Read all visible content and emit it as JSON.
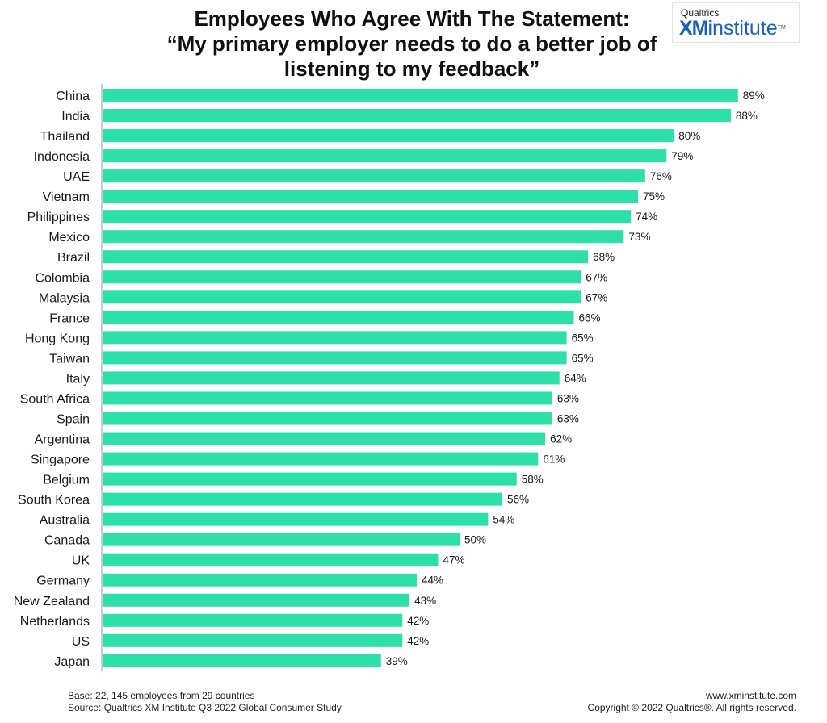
{
  "title_lines": [
    "Employees Who Agree With The Statement:",
    "“My primary employer needs to do a better job of",
    "listening to my feedback”"
  ],
  "logo": {
    "brand": "Qualtrics",
    "xm": "XM",
    "institute": "institute",
    "tm": "TM"
  },
  "footer": {
    "base": "Base: 22, 145 employees from 29 countries",
    "source": "Source: Qualtrics XM Institute Q3 2022 Global Consumer Study",
    "site": "www.xminstitute.com",
    "copyright": "Copyright © 2022 Qualtrics®. All rights reserved."
  },
  "colors": {
    "bar": "#2de0a9",
    "axis": "#9a9a9a"
  },
  "chart_data": {
    "type": "bar",
    "orientation": "horizontal",
    "categories": [
      "China",
      "India",
      "Thailand",
      "Indonesia",
      "UAE",
      "Vietnam",
      "Philippines",
      "Mexico",
      "Brazil",
      "Colombia",
      "Malaysia",
      "France",
      "Hong Kong",
      "Taiwan",
      "Italy",
      "South Africa",
      "Spain",
      "Argentina",
      "Singapore",
      "Belgium",
      "South Korea",
      "Australia",
      "Canada",
      "UK",
      "Germany",
      "New Zealand",
      "Netherlands",
      "US",
      "Japan"
    ],
    "values": [
      89,
      88,
      80,
      79,
      76,
      75,
      74,
      73,
      68,
      67,
      67,
      66,
      65,
      65,
      64,
      63,
      63,
      62,
      61,
      58,
      56,
      54,
      50,
      47,
      44,
      43,
      42,
      42,
      39
    ],
    "labels": [
      "89%",
      "88%",
      "80%",
      "79%",
      "76%",
      "75%",
      "74%",
      "73%",
      "68%",
      "67%",
      "67%",
      "66%",
      "65%",
      "65%",
      "64%",
      "63%",
      "63%",
      "62%",
      "61%",
      "58%",
      "56%",
      "54%",
      "50%",
      "47%",
      "44%",
      "43%",
      "42%",
      "42%",
      "39%"
    ],
    "xlim": [
      0,
      100
    ],
    "grid": false
  }
}
